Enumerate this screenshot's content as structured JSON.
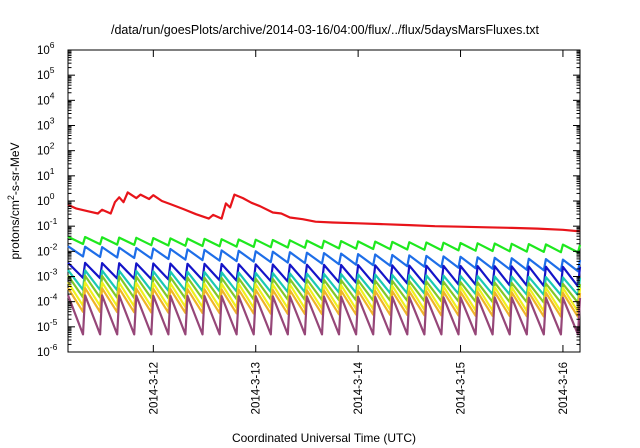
{
  "chart_data": {
    "type": "line",
    "title": "/data/run/goesPlots/archive/2014-03-16/04:00/flux/../flux/5daysMarsFluxes.txt",
    "xlabel": "Coordinated Universal Time (UTC)",
    "ylabel": "protons/cm2-s-sr-MeV",
    "yscale": "log",
    "ylim": [
      1e-06,
      1000000.0
    ],
    "xlim": [
      "2014-03-11 04:00",
      "2014-03-16 04:00"
    ],
    "x_ticks": [
      "2014-3-12",
      "2014-3-13",
      "2014-3-14",
      "2014-3-15",
      "2014-3-16"
    ],
    "y_ticks": [
      {
        "base": "10",
        "exp": "-6"
      },
      {
        "base": "10",
        "exp": "-5"
      },
      {
        "base": "10",
        "exp": "-4"
      },
      {
        "base": "10",
        "exp": "-3"
      },
      {
        "base": "10",
        "exp": "-2"
      },
      {
        "base": "10",
        "exp": "-1"
      },
      {
        "base": "10",
        "exp": "0"
      },
      {
        "base": "10",
        "exp": "1"
      },
      {
        "base": "10",
        "exp": "2"
      },
      {
        "base": "10",
        "exp": "3"
      },
      {
        "base": "10",
        "exp": "4"
      },
      {
        "base": "10",
        "exp": "5"
      },
      {
        "base": "10",
        "exp": "6"
      }
    ],
    "grid": false,
    "legend": "none",
    "series": [
      {
        "color": "#e8141a",
        "points": [
          [
            "2014-03-11 04:00",
            0.7
          ],
          [
            "2014-03-11 06:00",
            0.5
          ],
          [
            "2014-03-11 09:00",
            0.38
          ],
          [
            "2014-03-11 11:00",
            0.32
          ],
          [
            "2014-03-11 12:00",
            0.45
          ],
          [
            "2014-03-11 14:00",
            0.32
          ],
          [
            "2014-03-11 15:00",
            0.9
          ],
          [
            "2014-03-11 16:00",
            1.4
          ],
          [
            "2014-03-11 17:00",
            0.9
          ],
          [
            "2014-03-11 18:00",
            2.2
          ],
          [
            "2014-03-11 20:00",
            1.3
          ],
          [
            "2014-03-11 21:00",
            1.8
          ],
          [
            "2014-03-11 23:00",
            1.2
          ],
          [
            "2014-03-12 00:00",
            1.7
          ],
          [
            "2014-03-12 02:00",
            1.0
          ],
          [
            "2014-03-12 04:00",
            0.75
          ],
          [
            "2014-03-12 07:00",
            0.48
          ],
          [
            "2014-03-12 10:00",
            0.3
          ],
          [
            "2014-03-12 13:00",
            0.2
          ],
          [
            "2014-03-12 14:00",
            0.28
          ],
          [
            "2014-03-12 16:00",
            0.2
          ],
          [
            "2014-03-12 17:00",
            0.8
          ],
          [
            "2014-03-12 18:00",
            0.55
          ],
          [
            "2014-03-12 19:00",
            1.8
          ],
          [
            "2014-03-12 21:00",
            1.3
          ],
          [
            "2014-03-12 23:00",
            0.85
          ],
          [
            "2014-03-13 01:00",
            0.62
          ],
          [
            "2014-03-13 04:00",
            0.35
          ],
          [
            "2014-03-13 06:00",
            0.32
          ],
          [
            "2014-03-13 08:00",
            0.22
          ],
          [
            "2014-03-13 11:00",
            0.19
          ],
          [
            "2014-03-13 14:00",
            0.15
          ],
          [
            "2014-03-13 18:00",
            0.14
          ],
          [
            "2014-03-14 00:00",
            0.13
          ],
          [
            "2014-03-14 06:00",
            0.12
          ],
          [
            "2014-03-14 12:00",
            0.11
          ],
          [
            "2014-03-14 18:00",
            0.1
          ],
          [
            "2014-03-15 00:00",
            0.095
          ],
          [
            "2014-03-15 06:00",
            0.09
          ],
          [
            "2014-03-15 12:00",
            0.085
          ],
          [
            "2014-03-15 18:00",
            0.08
          ],
          [
            "2014-03-16 00:00",
            0.072
          ],
          [
            "2014-03-16 04:00",
            0.062
          ]
        ]
      },
      {
        "color": "#1ee81e",
        "sawtooth": {
          "peak_start": 0.038,
          "peak_end": 0.018,
          "trough_start": 0.02,
          "trough_end": 0.009,
          "teeth": 30
        }
      },
      {
        "color": "#1e6ee8",
        "sawtooth": {
          "peak_start": 0.016,
          "peak_end": 0.0045,
          "trough_start": 0.0065,
          "trough_end": 0.0016,
          "teeth": 30
        }
      },
      {
        "color": "#1414c8",
        "sawtooth": {
          "peak_start": 0.0035,
          "peak_end": 0.0024,
          "trough_start": 0.0009,
          "trough_end": 0.0004,
          "teeth": 30
        }
      },
      {
        "color": "#19c8b4",
        "sawtooth": {
          "peak_start": 0.0018,
          "peak_end": 0.0009,
          "trough_start": 0.0003,
          "trough_end": 0.00018,
          "teeth": 30
        }
      },
      {
        "color": "#82c828",
        "sawtooth": {
          "peak_start": 0.0011,
          "peak_end": 0.0005,
          "trough_start": 0.00015,
          "trough_end": 9e-05,
          "teeth": 30
        }
      },
      {
        "color": "#f0f01e",
        "sawtooth": {
          "peak_start": 0.0006,
          "peak_end": 0.00035,
          "trough_start": 7e-05,
          "trough_end": 4e-05,
          "teeth": 30
        }
      },
      {
        "color": "#f0b428",
        "sawtooth": {
          "peak_start": 0.00035,
          "peak_end": 0.00022,
          "trough_start": 4e-05,
          "trough_end": 2.5e-05,
          "teeth": 30
        }
      },
      {
        "color": "#964678",
        "sawtooth": {
          "peak_start": 0.00018,
          "peak_end": 0.00014,
          "trough_start": 5e-06,
          "trough_end": 5e-06,
          "teeth": 30
        }
      }
    ]
  }
}
